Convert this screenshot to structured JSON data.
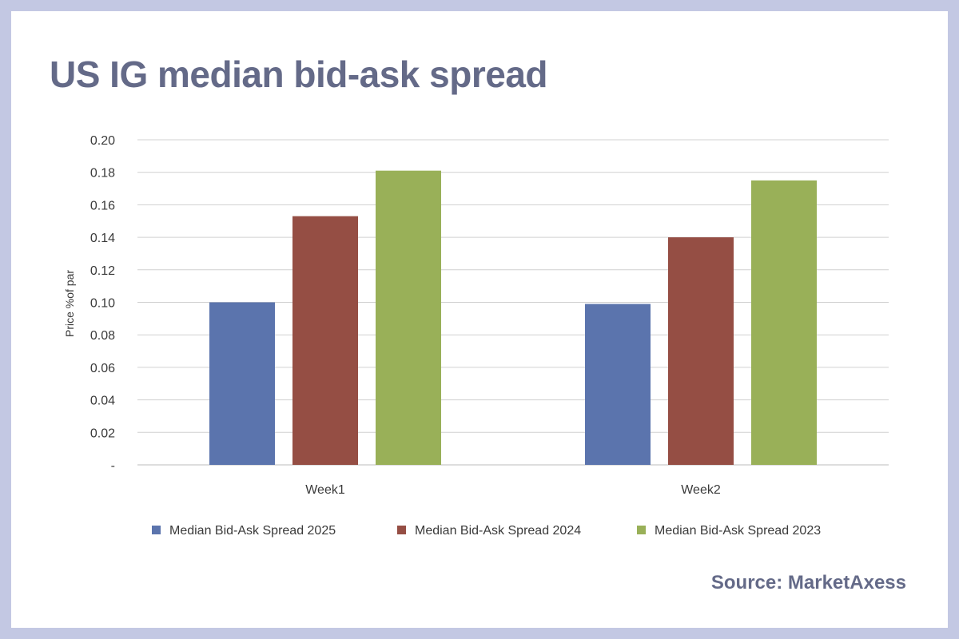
{
  "title": "US IG median bid-ask spread",
  "source": "Source: MarketAxess",
  "colors": {
    "background": "#c3c8e3",
    "title": "#646a88",
    "gridline": "#d0d0d0",
    "axis_text": "#3a3a3a"
  },
  "chart_data": {
    "type": "bar",
    "categories": [
      "Week1",
      "Week2"
    ],
    "series": [
      {
        "name": "Median Bid-Ask Spread 2025",
        "values": [
          0.1,
          0.099
        ],
        "color": "#5b74ad"
      },
      {
        "name": "Median Bid-Ask Spread 2024",
        "values": [
          0.153,
          0.14
        ],
        "color": "#954e44"
      },
      {
        "name": "Median Bid-Ask Spread 2023",
        "values": [
          0.181,
          0.175
        ],
        "color": "#99b058"
      }
    ],
    "ylabel": "Price %of par",
    "xlabel": "",
    "ylim": [
      0,
      0.2
    ],
    "yticks": [
      "-",
      "0.02",
      "0.04",
      "0.06",
      "0.08",
      "0.10",
      "0.12",
      "0.14",
      "0.16",
      "0.18",
      "0.20"
    ],
    "grid": true,
    "legend_position": "bottom"
  }
}
